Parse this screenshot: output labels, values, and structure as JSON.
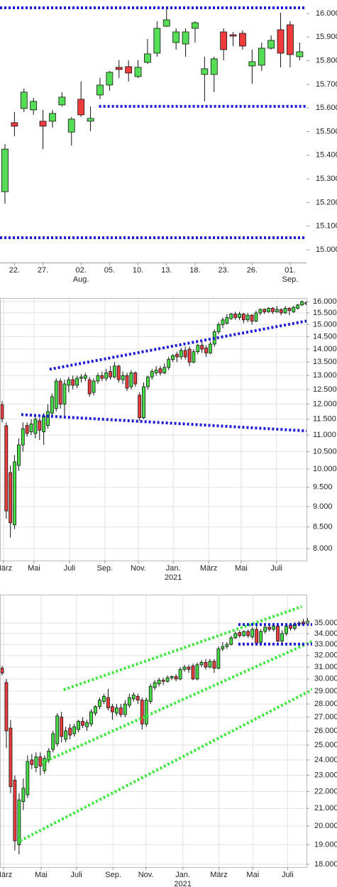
{
  "chart_data": [
    {
      "type": "candlestick",
      "log": false,
      "grid": false,
      "up_color": "#55dd55",
      "down_color": "#ee3b3b",
      "xlim": [
        -0.52,
        31.72
      ],
      "ylim": [
        14946,
        16057
      ],
      "yticks": [
        {
          "value": 15000,
          "label": "15.000"
        },
        {
          "value": 15100,
          "label": "15.100"
        },
        {
          "value": 15200,
          "label": "15.200"
        },
        {
          "value": 15300,
          "label": "15.300"
        },
        {
          "value": 15400,
          "label": "15.400"
        },
        {
          "value": 15500,
          "label": "15.500"
        },
        {
          "value": 15600,
          "label": "15.600"
        },
        {
          "value": 15700,
          "label": "15.700"
        },
        {
          "value": 15800,
          "label": "15.800"
        },
        {
          "value": 15900,
          "label": "15.900"
        },
        {
          "value": 16000,
          "label": "16.000"
        }
      ],
      "xticks": [
        {
          "value": 1,
          "label": "22."
        },
        {
          "value": 4,
          "label": "27."
        },
        {
          "value": 8,
          "label": "02.",
          "sublabel": "Aug."
        },
        {
          "value": 11,
          "label": "05."
        },
        {
          "value": 14,
          "label": "10."
        },
        {
          "value": 17,
          "label": "13."
        },
        {
          "value": 20,
          "label": "18."
        },
        {
          "value": 23,
          "label": "23."
        },
        {
          "value": 26,
          "label": "26."
        },
        {
          "value": 30,
          "label": "01.",
          "sublabel": "Sep."
        }
      ],
      "open": [
        15246,
        15538,
        15598,
        15592,
        15544,
        15544,
        15613,
        15498,
        15637,
        15544,
        15655,
        15697,
        15772,
        15775,
        15733,
        15793,
        15832,
        15946,
        15877,
        15871,
        15937,
        15742,
        15742,
        15922,
        15910,
        15916,
        15778,
        15781,
        15853,
        15931,
        15952,
        15817
      ],
      "high": [
        15447,
        15583,
        15682,
        15643,
        15592,
        15592,
        15667,
        15562,
        15712,
        15607,
        15727,
        15757,
        15802,
        15802,
        15802,
        15892,
        15967,
        16027,
        15937,
        15937,
        15967,
        15817,
        15817,
        15937,
        15922,
        15928,
        15847,
        15877,
        15907,
        16003,
        15967,
        15877
      ],
      "low": [
        15195,
        15480,
        15583,
        15571,
        15426,
        15517,
        15607,
        15441,
        15562,
        15502,
        15637,
        15673,
        15727,
        15712,
        15727,
        15787,
        15817,
        15943,
        15847,
        15817,
        15877,
        15628,
        15667,
        15802,
        15862,
        15847,
        15703,
        15757,
        15847,
        15772,
        15772,
        15802
      ],
      "close": [
        15426,
        15523,
        15667,
        15628,
        15523,
        15577,
        15646,
        15553,
        15571,
        15556,
        15697,
        15751,
        15763,
        15748,
        15772,
        15829,
        15937,
        15973,
        15922,
        15922,
        15961,
        15766,
        15808,
        15847,
        15904,
        15862,
        15796,
        15853,
        15886,
        15832,
        15826,
        15838
      ],
      "lines": [
        {
          "color": "#1c1cd6",
          "x": [
            -0.52,
            31.72
          ],
          "y": [
            16024,
            16024
          ]
        },
        {
          "color": "#1c1cd6",
          "x": [
            9.9,
            31.72
          ],
          "y": [
            15607,
            15607
          ]
        },
        {
          "color": "#1c1cd6",
          "x": [
            -0.52,
            31.72
          ],
          "y": [
            15051,
            15051
          ]
        }
      ]
    },
    {
      "type": "candlestick",
      "log": true,
      "grid": true,
      "up_color": "#44dd44",
      "down_color": "#ee3b3b",
      "xlim": [
        -0.5,
        73.1
      ],
      "ylim": [
        7734,
        16160
      ],
      "yticks": [
        {
          "value": 8000,
          "label": "8.000"
        },
        {
          "value": 8500,
          "label": "8.500"
        },
        {
          "value": 9000,
          "label": "9.000"
        },
        {
          "value": 9500,
          "label": "9.500"
        },
        {
          "value": 10000,
          "label": "10.000"
        },
        {
          "value": 10500,
          "label": "10.500"
        },
        {
          "value": 11000,
          "label": "11.000"
        },
        {
          "value": 11500,
          "label": "11.500"
        },
        {
          "value": 12000,
          "label": "12.000"
        },
        {
          "value": 12500,
          "label": "12.500"
        },
        {
          "value": 13000,
          "label": "13.000"
        },
        {
          "value": 13500,
          "label": "13.500"
        },
        {
          "value": 14000,
          "label": "14.000"
        },
        {
          "value": 14500,
          "label": "14.500"
        },
        {
          "value": 15000,
          "label": "15.000"
        },
        {
          "value": 15500,
          "label": "15.500"
        },
        {
          "value": 16000,
          "label": "16.000"
        }
      ],
      "xticks": [
        {
          "value": 0.34,
          "label": "März"
        },
        {
          "value": 7.67,
          "label": "Mai"
        },
        {
          "value": 16.2,
          "label": "Juli"
        },
        {
          "value": 24.7,
          "label": "Sep."
        },
        {
          "value": 32.7,
          "label": "Nov."
        },
        {
          "value": 41.1,
          "label": "Jan.",
          "sublabel": "2021"
        },
        {
          "value": 49.6,
          "label": "März"
        },
        {
          "value": 57.4,
          "label": "Mai"
        },
        {
          "value": 65.9,
          "label": "Juli"
        }
      ],
      "open": [
        11980,
        11290,
        9900,
        8550,
        10100,
        10700,
        11300,
        11100,
        11050,
        11450,
        11100,
        11300,
        11700,
        11850,
        12800,
        12000,
        12650,
        12850,
        12650,
        12900,
        12900,
        12850,
        12400,
        12800,
        13000,
        12900,
        13150,
        12950,
        13350,
        12850,
        13000,
        12600,
        13100,
        12300,
        11550,
        12600,
        12950,
        13100,
        13250,
        13100,
        13300,
        13600,
        13800,
        13700,
        13950,
        14000,
        13500,
        13900,
        14150,
        14050,
        13850,
        14200,
        14700,
        15000,
        15050,
        15250,
        15450,
        15300,
        15450,
        15200,
        15400,
        15150,
        15500,
        15650,
        15550,
        15700,
        15550,
        15650,
        15500,
        15700,
        15550,
        15700,
        15850,
        15900
      ],
      "high": [
        12100,
        11400,
        10100,
        10400,
        10900,
        11400,
        11400,
        11500,
        11600,
        11550,
        11700,
        12000,
        12350,
        12900,
        12900,
        12850,
        12950,
        13000,
        13000,
        13050,
        13100,
        12950,
        12900,
        13100,
        13150,
        13250,
        13350,
        13500,
        13400,
        13150,
        13100,
        13200,
        13150,
        12400,
        12750,
        13000,
        13250,
        13350,
        13350,
        13450,
        13700,
        13800,
        13900,
        14050,
        14100,
        14100,
        14000,
        14200,
        14300,
        14150,
        14300,
        14800,
        15100,
        15300,
        15450,
        15500,
        15550,
        15550,
        15500,
        15500,
        15450,
        15600,
        15700,
        15700,
        15750,
        15750,
        15800,
        15700,
        15800,
        15750,
        15800,
        15900,
        16050,
        16000
      ],
      "low": [
        11400,
        8700,
        8250,
        8450,
        9950,
        10500,
        10950,
        11000,
        10900,
        10850,
        10700,
        11200,
        11600,
        11750,
        11850,
        11600,
        12400,
        12500,
        12550,
        12750,
        12800,
        12250,
        12300,
        12700,
        12800,
        12800,
        12850,
        12900,
        12750,
        12700,
        12450,
        12500,
        12600,
        11450,
        11500,
        12500,
        12850,
        13000,
        13000,
        13050,
        13200,
        13500,
        13500,
        13600,
        13600,
        13350,
        13450,
        13800,
        13850,
        13700,
        13800,
        14100,
        14600,
        14850,
        15000,
        15200,
        15200,
        15200,
        15050,
        15100,
        15000,
        15100,
        15400,
        15450,
        15500,
        15450,
        15500,
        15400,
        15450,
        15400,
        15500,
        15650,
        15800,
        15850
      ],
      "close": [
        11520,
        8890,
        8600,
        10200,
        10700,
        11200,
        11050,
        11350,
        11500,
        11150,
        11600,
        11750,
        12250,
        12800,
        12000,
        12700,
        12850,
        12650,
        12900,
        12950,
        13000,
        12350,
        12800,
        13000,
        12900,
        13100,
        12950,
        13350,
        12850,
        13000,
        12550,
        13100,
        12700,
        11550,
        12600,
        12950,
        13150,
        13200,
        13100,
        13300,
        13600,
        13750,
        13700,
        13950,
        13700,
        13500,
        13900,
        14150,
        14000,
        13850,
        14200,
        14700,
        15000,
        15200,
        15300,
        15450,
        15300,
        15450,
        15200,
        15400,
        15150,
        15500,
        15650,
        15550,
        15700,
        15550,
        15650,
        15500,
        15700,
        15600,
        15750,
        15850,
        16000,
        15950
      ],
      "lines": [
        {
          "color": "#1c1cd6",
          "x": [
            11.4,
            73.1
          ],
          "y": [
            13230,
            15150
          ]
        },
        {
          "color": "#1c1cd6",
          "x": [
            4.6,
            73.1
          ],
          "y": [
            11650,
            11130
          ]
        }
      ]
    },
    {
      "type": "candlestick",
      "log": true,
      "grid": true,
      "up_color": "#44dd44",
      "down_color": "#ee3b3b",
      "xlim": [
        -0.5,
        73.1
      ],
      "ylim": [
        17860,
        37850
      ],
      "yticks": [
        {
          "value": 18000,
          "label": "18.000"
        },
        {
          "value": 19000,
          "label": "19.000"
        },
        {
          "value": 20000,
          "label": "20.000"
        },
        {
          "value": 21000,
          "label": "21.000"
        },
        {
          "value": 22000,
          "label": "22.000"
        },
        {
          "value": 23000,
          "label": "23.000"
        },
        {
          "value": 24000,
          "label": "24.000"
        },
        {
          "value": 25000,
          "label": "25.000"
        },
        {
          "value": 26000,
          "label": "26.000"
        },
        {
          "value": 27000,
          "label": "27.000"
        },
        {
          "value": 28000,
          "label": "28.000"
        },
        {
          "value": 29000,
          "label": "29.000"
        },
        {
          "value": 30000,
          "label": "30.000"
        },
        {
          "value": 31000,
          "label": "31.000"
        },
        {
          "value": 32000,
          "label": "32.000"
        },
        {
          "value": 33000,
          "label": "33.000"
        },
        {
          "value": 34000,
          "label": "34.000"
        },
        {
          "value": 35000,
          "label": "35.000"
        }
      ],
      "xticks": [
        {
          "value": 0.34,
          "label": "März"
        },
        {
          "value": 9.2,
          "label": "Mai"
        },
        {
          "value": 17.5,
          "label": "Juli"
        },
        {
          "value": 26.2,
          "label": "Sep."
        },
        {
          "value": 33.9,
          "label": "Nov."
        },
        {
          "value": 42.6,
          "label": "Jan.",
          "sublabel": "2021"
        },
        {
          "value": 51.1,
          "label": "März"
        },
        {
          "value": 59.1,
          "label": "Mai"
        },
        {
          "value": 67.3,
          "label": "Juli"
        }
      ],
      "open": [
        30900,
        29700,
        26200,
        22700,
        19000,
        21400,
        21800,
        24000,
        23500,
        24200,
        23300,
        24000,
        24700,
        25100,
        27000,
        25400,
        26200,
        25800,
        26100,
        26700,
        26300,
        26500,
        27300,
        27800,
        28200,
        28500,
        27800,
        27300,
        27700,
        27200,
        27900,
        28400,
        28600,
        28300,
        26500,
        28200,
        29300,
        29600,
        29900,
        29800,
        30100,
        30200,
        30000,
        30800,
        31000,
        31100,
        30000,
        31200,
        31400,
        31000,
        31500,
        30900,
        32600,
        32800,
        33000,
        33600,
        34100,
        33800,
        34200,
        33700,
        34400,
        33200,
        34200,
        34600,
        34400,
        34700,
        33300,
        34000,
        34800,
        34500,
        34900,
        35100,
        34900
      ],
      "high": [
        31100,
        30000,
        26800,
        23000,
        21900,
        22800,
        24300,
        24400,
        24500,
        24500,
        24300,
        24800,
        26000,
        27300,
        27400,
        26300,
        26500,
        26500,
        26800,
        27000,
        26800,
        27600,
        27900,
        28500,
        28800,
        29200,
        28000,
        28000,
        28000,
        28300,
        28800,
        28900,
        28800,
        28500,
        28500,
        29600,
        29900,
        30100,
        30100,
        30300,
        30300,
        30400,
        31000,
        31200,
        31200,
        31300,
        31400,
        31600,
        31700,
        31700,
        31700,
        32800,
        33200,
        33200,
        33800,
        34200,
        34300,
        34300,
        34400,
        34600,
        34800,
        34400,
        34800,
        34800,
        34900,
        34800,
        34300,
        34800,
        34900,
        35100,
        35200,
        35400,
        35500
      ],
      "low": [
        30300,
        24800,
        21900,
        18700,
        18500,
        20900,
        21600,
        23400,
        23200,
        23000,
        23100,
        23800,
        24500,
        24900,
        25200,
        25200,
        25400,
        25600,
        25900,
        26200,
        26000,
        26300,
        27100,
        27600,
        28000,
        27500,
        26800,
        27100,
        27000,
        27000,
        27700,
        28200,
        28000,
        26100,
        26300,
        28000,
        29100,
        29400,
        29500,
        29700,
        29900,
        29800,
        29900,
        30600,
        30500,
        29900,
        29900,
        31000,
        30800,
        30900,
        30500,
        30800,
        32400,
        32600,
        32900,
        33500,
        33600,
        33700,
        33600,
        33500,
        33000,
        33100,
        34000,
        34200,
        34200,
        33200,
        33100,
        33800,
        34300,
        34300,
        34700,
        34800,
        34800
      ],
      "close": [
        30500,
        26000,
        22300,
        19200,
        21500,
        22200,
        23900,
        23700,
        24200,
        23600,
        24100,
        24600,
        25800,
        27100,
        25600,
        26000,
        25700,
        26300,
        26700,
        26400,
        26600,
        27400,
        27800,
        28300,
        28600,
        27700,
        27400,
        27700,
        27200,
        28000,
        28500,
        28700,
        28300,
        26500,
        28300,
        29400,
        29700,
        29900,
        29800,
        30100,
        30200,
        30000,
        30800,
        31000,
        30800,
        30000,
        31200,
        31400,
        31000,
        31500,
        30900,
        32600,
        32800,
        33000,
        33600,
        34000,
        33800,
        34200,
        33800,
        34400,
        33100,
        34200,
        34600,
        34400,
        34700,
        33300,
        34000,
        34700,
        34500,
        34900,
        35000,
        34900,
        35200
      ],
      "lines": [
        {
          "color": "#3ee83e",
          "x": [
            14.5,
            70.7
          ],
          "y": [
            29120,
            36630
          ]
        },
        {
          "color": "#3ee83e",
          "x": [
            9.4,
            74.4
          ],
          "y": [
            23810,
            33500
          ]
        },
        {
          "color": "#3ee83e",
          "x": [
            4.26,
            74.4
          ],
          "y": [
            19200,
            29360
          ]
        },
        {
          "color": "#1c1cd6",
          "x": [
            55.7,
            74.4
          ],
          "y": [
            34860,
            34860
          ]
        },
        {
          "color": "#1c1cd6",
          "x": [
            55.7,
            74.4
          ],
          "y": [
            33020,
            33020
          ]
        }
      ]
    }
  ]
}
